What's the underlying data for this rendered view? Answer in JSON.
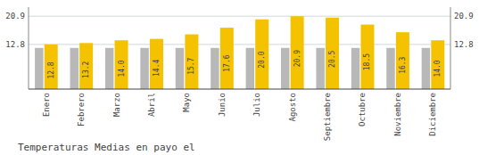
{
  "chart_data": {
    "type": "bar",
    "title": "Temperaturas Medias en payo el",
    "categories": [
      "Enero",
      "Febrero",
      "Marzo",
      "Abril",
      "Mayo",
      "Junio",
      "Julio",
      "Agosto",
      "Septiembre",
      "Octubre",
      "Noviembre",
      "Diciembre"
    ],
    "series": [
      {
        "color": "#B8B8B8",
        "values": [
          11.8,
          11.8,
          11.8,
          11.8,
          11.8,
          11.8,
          11.8,
          11.8,
          11.8,
          11.8,
          11.8,
          11.8
        ],
        "data_labels": false
      },
      {
        "color": "#F5C200",
        "values": [
          12.8,
          13.2,
          14.0,
          14.4,
          15.7,
          17.6,
          20.0,
          20.9,
          20.5,
          18.5,
          16.3,
          14.0
        ],
        "data_labels": true,
        "value_labels": [
          "12.8",
          "13.2",
          "14.0",
          "14.4",
          "15.7",
          "17.6",
          "20.0",
          "20.9",
          "20.5",
          "18.5",
          "16.3",
          "14.0"
        ]
      }
    ],
    "ylim": [
      0,
      23.5
    ],
    "yticks": [
      12.8,
      20.9
    ],
    "y2lim": [
      0,
      23.5
    ],
    "y2ticks": [
      12.8,
      20.9
    ],
    "grid": true
  }
}
